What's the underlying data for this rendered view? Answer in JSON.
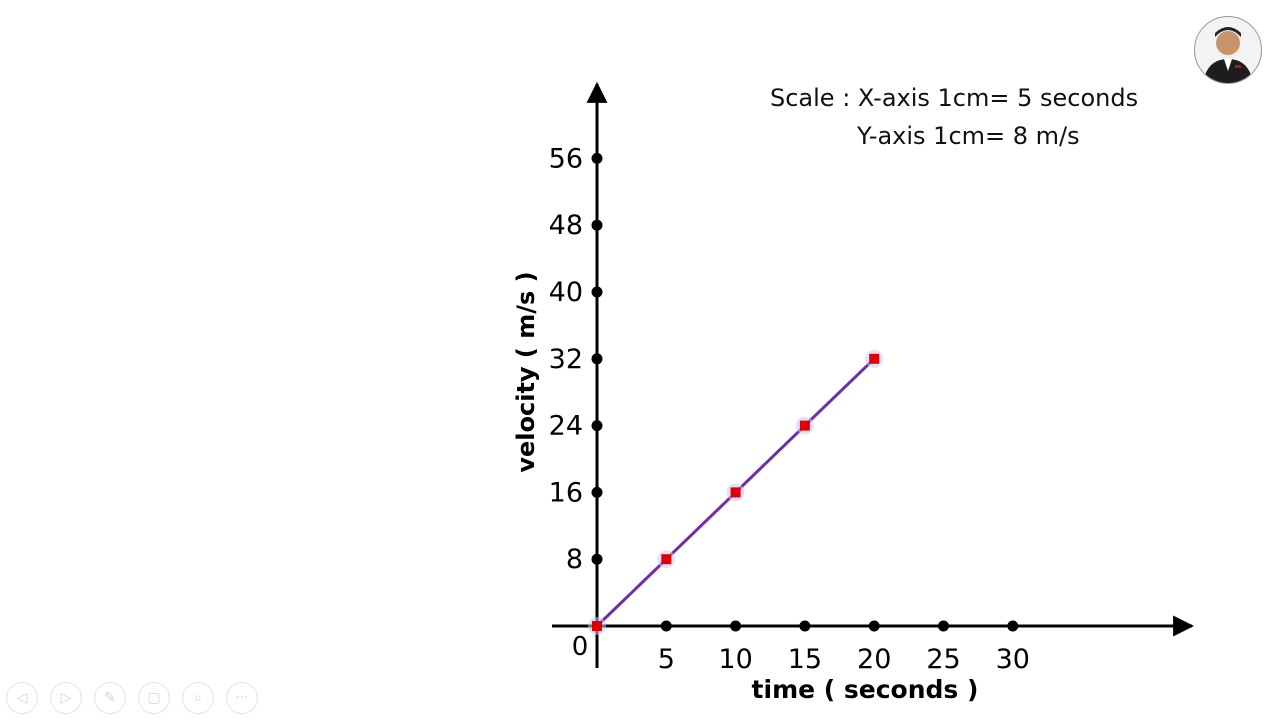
{
  "scale": {
    "line1": "Scale : X-axis 1cm= 5 seconds",
    "line2": "Y-axis 1cm= 8 m/s"
  },
  "chart_data": {
    "type": "line",
    "xlabel": "time ( seconds )",
    "ylabel": "velocity ( m/s )",
    "x_ticks": [
      "5",
      "10",
      "15",
      "20",
      "25",
      "30"
    ],
    "y_ticks": [
      "8",
      "16",
      "24",
      "32",
      "40",
      "48",
      "56"
    ],
    "origin_label": "0",
    "xlim": [
      0,
      30
    ],
    "ylim": [
      0,
      56
    ],
    "grid": false,
    "series": [
      {
        "x": [
          0,
          5,
          10,
          15,
          20
        ],
        "y": [
          0,
          8,
          16,
          24,
          32
        ]
      }
    ],
    "colors": {
      "line": "#6f2da8",
      "point": "#e00000",
      "axis": "#000000"
    }
  },
  "toolbar": {
    "icons": [
      "previous-icon",
      "next-icon",
      "pen-icon",
      "slides-icon",
      "zoom-icon",
      "more-icon"
    ],
    "glyphs": [
      "◁",
      "▷",
      "✎",
      "▢",
      "⌕",
      "···"
    ]
  },
  "avatar": {
    "icon": "presenter-avatar"
  }
}
